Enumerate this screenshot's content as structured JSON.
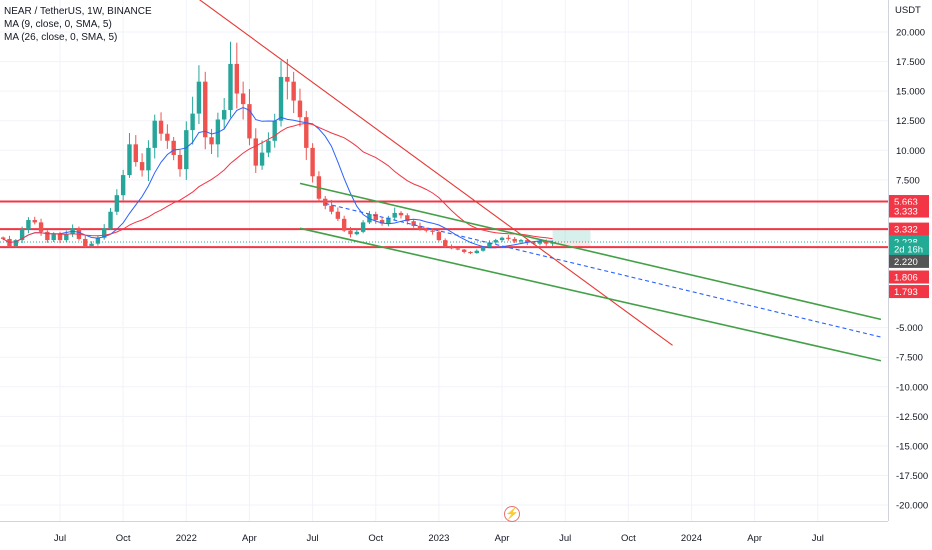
{
  "legend": {
    "title": "NEAR / TetherUS, 1W, BINANCE",
    "ma1": "MA (9, close, 0, SMA, 5)",
    "ma2": "MA (26, close, 0, SMA, 5)"
  },
  "chart_data": {
    "type": "candlestick",
    "symbol": "NEAR / TetherUS",
    "interval": "1W",
    "exchange": "BINANCE",
    "currency": "USDT",
    "ylim": [
      -21.5,
      22
    ],
    "y_ticks": [
      {
        "v": 20,
        "label": "20.000"
      },
      {
        "v": 17.5,
        "label": "17.500"
      },
      {
        "v": 15,
        "label": "15.000"
      },
      {
        "v": 12.5,
        "label": "12.500"
      },
      {
        "v": 10,
        "label": "10.000"
      },
      {
        "v": 7.5,
        "label": "7.500"
      },
      {
        "v": -5,
        "label": "-5.000"
      },
      {
        "v": -7.5,
        "label": "-7.500"
      },
      {
        "v": -10,
        "label": "-10.000"
      },
      {
        "v": -12.5,
        "label": "-12.500"
      },
      {
        "v": -15,
        "label": "-15.000"
      },
      {
        "v": -17.5,
        "label": "-17.500"
      },
      {
        "v": -20,
        "label": "-20.000"
      }
    ],
    "x_ticks": [
      {
        "w": 0,
        "label": "Jul"
      },
      {
        "w": 10,
        "label": "Oct"
      },
      {
        "w": 20,
        "label": "2022"
      },
      {
        "w": 30,
        "label": "Apr"
      },
      {
        "w": 40,
        "label": "Jul"
      },
      {
        "w": 50,
        "label": "Oct"
      },
      {
        "w": 60,
        "label": "2023"
      },
      {
        "w": 70,
        "label": "Apr"
      },
      {
        "w": 80,
        "label": "Jul"
      },
      {
        "w": 90,
        "label": "Oct"
      },
      {
        "w": 100,
        "label": "2024"
      },
      {
        "w": 110,
        "label": "Apr"
      },
      {
        "w": 120,
        "label": "Jul"
      }
    ],
    "closes": [
      2.5,
      1.9,
      2.4,
      3.3,
      4.1,
      3.9,
      3.1,
      2.4,
      2.9,
      2.4,
      2.9,
      3.4,
      2.5,
      1.9,
      2.1,
      2.6,
      3.4,
      4.8,
      6.2,
      7.9,
      10.5,
      9.0,
      8.3,
      10.2,
      12.5,
      11.4,
      10.8,
      9.6,
      8.4,
      11.7,
      13.1,
      15.8,
      11.1,
      10.5,
      12.6,
      13.4,
      17.3,
      14.8,
      13.9,
      11.0,
      8.7,
      9.8,
      10.8,
      12.5,
      16.2,
      15.8,
      14.2,
      12.8,
      10.2,
      7.8,
      5.9,
      5.3,
      4.8,
      4.2,
      3.2,
      2.9,
      3.1,
      3.9,
      4.6,
      4.1,
      3.8,
      4.3,
      4.7,
      4.5,
      4.0,
      3.6,
      3.3,
      3.2,
      3.1,
      2.4,
      1.9,
      1.7,
      1.6,
      1.4,
      1.3,
      1.5,
      1.8,
      2.2,
      2.4,
      2.6,
      2.5,
      2.3,
      2.4,
      2.2,
      2.1,
      2.3,
      2.1,
      2.24
    ],
    "ma9_label": "MA (9, close, 0, SMA, 5)",
    "ma26_label": "MA (26, close, 0, SMA, 5)",
    "horizontal_levels": [
      5.663,
      3.332,
      1.806
    ],
    "trendlines": [
      {
        "color": "#e53935",
        "from": [
          15,
          25.5
        ],
        "to": [
          97,
          -6.5
        ]
      },
      {
        "color": "#43a047",
        "from": [
          38,
          7.2
        ],
        "to": [
          130,
          -4.3
        ]
      },
      {
        "color": "#43a047",
        "from": [
          38,
          3.4
        ],
        "to": [
          130,
          -7.8
        ]
      },
      {
        "color": "#2962ff",
        "dashed": true,
        "from": [
          42,
          5.5
        ],
        "to": [
          130,
          -5.8
        ]
      }
    ],
    "price_tags": [
      {
        "label": "5.663",
        "v": 5.663,
        "color": "#f23645"
      },
      {
        "label": "3.333",
        "v": 4.86,
        "color": "#f23645"
      },
      {
        "label": "3.332",
        "v": 3.332,
        "color": "#f23645"
      },
      {
        "label": "2.238",
        "v": 2.238,
        "color": "#22ab94"
      },
      {
        "label": "2d 16h",
        "v": 1.65,
        "color": "#22ab94"
      },
      {
        "label": "2.220",
        "v": 0.6,
        "color": "#555555"
      },
      {
        "label": "1.806",
        "v": -0.72,
        "color": "#f23645"
      },
      {
        "label": "1.793",
        "v": -1.95,
        "color": "#f23645"
      }
    ],
    "up_color": "#26a69a",
    "down_color": "#ef5350",
    "ma9_color": "#2962ff",
    "ma26_color": "#f23645",
    "grid": true
  }
}
